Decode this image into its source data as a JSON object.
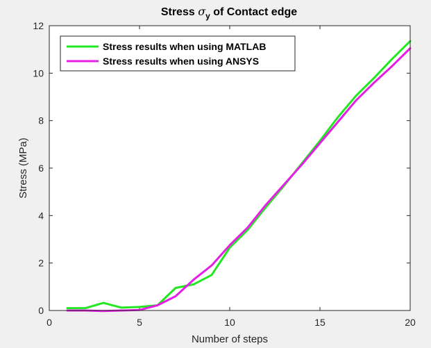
{
  "chart_data": {
    "type": "line",
    "title_prefix": "Stress ",
    "title_symbol": "σ",
    "title_subscript": "y",
    "title_suffix": " of Contact edge",
    "xlabel": "Number of steps",
    "ylabel": "Stress (MPa)",
    "xlim": [
      0,
      20
    ],
    "ylim": [
      0,
      12
    ],
    "xticks": [
      0,
      5,
      10,
      15,
      20
    ],
    "yticks": [
      0,
      2,
      4,
      6,
      8,
      10,
      12
    ],
    "grid": false,
    "legend_position": "top-left",
    "series": [
      {
        "name": "Stress results when using MATLAB",
        "color": "#22e822",
        "x": [
          1,
          2,
          3,
          4,
          5,
          6,
          7,
          8,
          9,
          10,
          11,
          12,
          13,
          14,
          15,
          16,
          17,
          18,
          19,
          20
        ],
        "y": [
          0.1,
          0.1,
          0.32,
          0.12,
          0.15,
          0.22,
          0.95,
          1.1,
          1.5,
          2.65,
          3.4,
          4.35,
          5.25,
          6.2,
          7.15,
          8.15,
          9.05,
          9.8,
          10.6,
          11.35
        ]
      },
      {
        "name": "Stress results when using ANSYS",
        "color": "#e51ee5",
        "x": [
          1,
          2,
          3,
          4,
          5,
          6,
          7,
          8,
          9,
          10,
          11,
          12,
          13,
          14,
          15,
          16,
          17,
          18,
          19,
          20
        ],
        "y": [
          0.0,
          0.0,
          -0.02,
          0.0,
          0.02,
          0.22,
          0.6,
          1.3,
          1.9,
          2.75,
          3.5,
          4.45,
          5.3,
          6.15,
          7.05,
          7.95,
          8.85,
          9.6,
          10.3,
          11.05
        ]
      }
    ]
  }
}
